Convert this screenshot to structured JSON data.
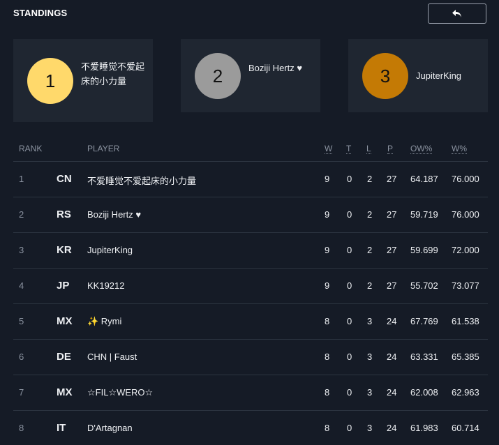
{
  "header": {
    "title": "STANDINGS",
    "back_icon": "back-arrow-icon"
  },
  "podium": [
    {
      "rank": "1",
      "name": "不爱睡觉不爱起床的小力量",
      "color": "#ffd96b"
    },
    {
      "rank": "2",
      "name": "Boziji Hertz ♥",
      "color": "#9b9b9b"
    },
    {
      "rank": "3",
      "name": "JupiterKing",
      "color": "#c47a05"
    }
  ],
  "table": {
    "headers": {
      "rank": "RANK",
      "player": "PLAYER",
      "w": "W",
      "t": "T",
      "l": "L",
      "p": "P",
      "ow": "OW%",
      "wp": "W%"
    },
    "rows": [
      {
        "rank": "1",
        "country": "CN",
        "player": "不爱睡觉不爱起床的小力量",
        "w": "9",
        "t": "0",
        "l": "2",
        "p": "27",
        "ow": "64.187",
        "wp": "76.000"
      },
      {
        "rank": "2",
        "country": "RS",
        "player": "Boziji Hertz ♥",
        "w": "9",
        "t": "0",
        "l": "2",
        "p": "27",
        "ow": "59.719",
        "wp": "76.000"
      },
      {
        "rank": "3",
        "country": "KR",
        "player": "JupiterKing",
        "w": "9",
        "t": "0",
        "l": "2",
        "p": "27",
        "ow": "59.699",
        "wp": "72.000"
      },
      {
        "rank": "4",
        "country": "JP",
        "player": "KK19212",
        "w": "9",
        "t": "0",
        "l": "2",
        "p": "27",
        "ow": "55.702",
        "wp": "73.077"
      },
      {
        "rank": "5",
        "country": "MX",
        "player": "✨ Rymi",
        "w": "8",
        "t": "0",
        "l": "3",
        "p": "24",
        "ow": "67.769",
        "wp": "61.538"
      },
      {
        "rank": "6",
        "country": "DE",
        "player": "CHN  | Faust",
        "w": "8",
        "t": "0",
        "l": "3",
        "p": "24",
        "ow": "63.331",
        "wp": "65.385"
      },
      {
        "rank": "7",
        "country": "MX",
        "player": "☆FIL☆WERO☆",
        "w": "8",
        "t": "0",
        "l": "3",
        "p": "24",
        "ow": "62.008",
        "wp": "62.963"
      },
      {
        "rank": "8",
        "country": "IT",
        "player": "D'Artagnan",
        "w": "8",
        "t": "0",
        "l": "3",
        "p": "24",
        "ow": "61.983",
        "wp": "60.714"
      }
    ]
  }
}
